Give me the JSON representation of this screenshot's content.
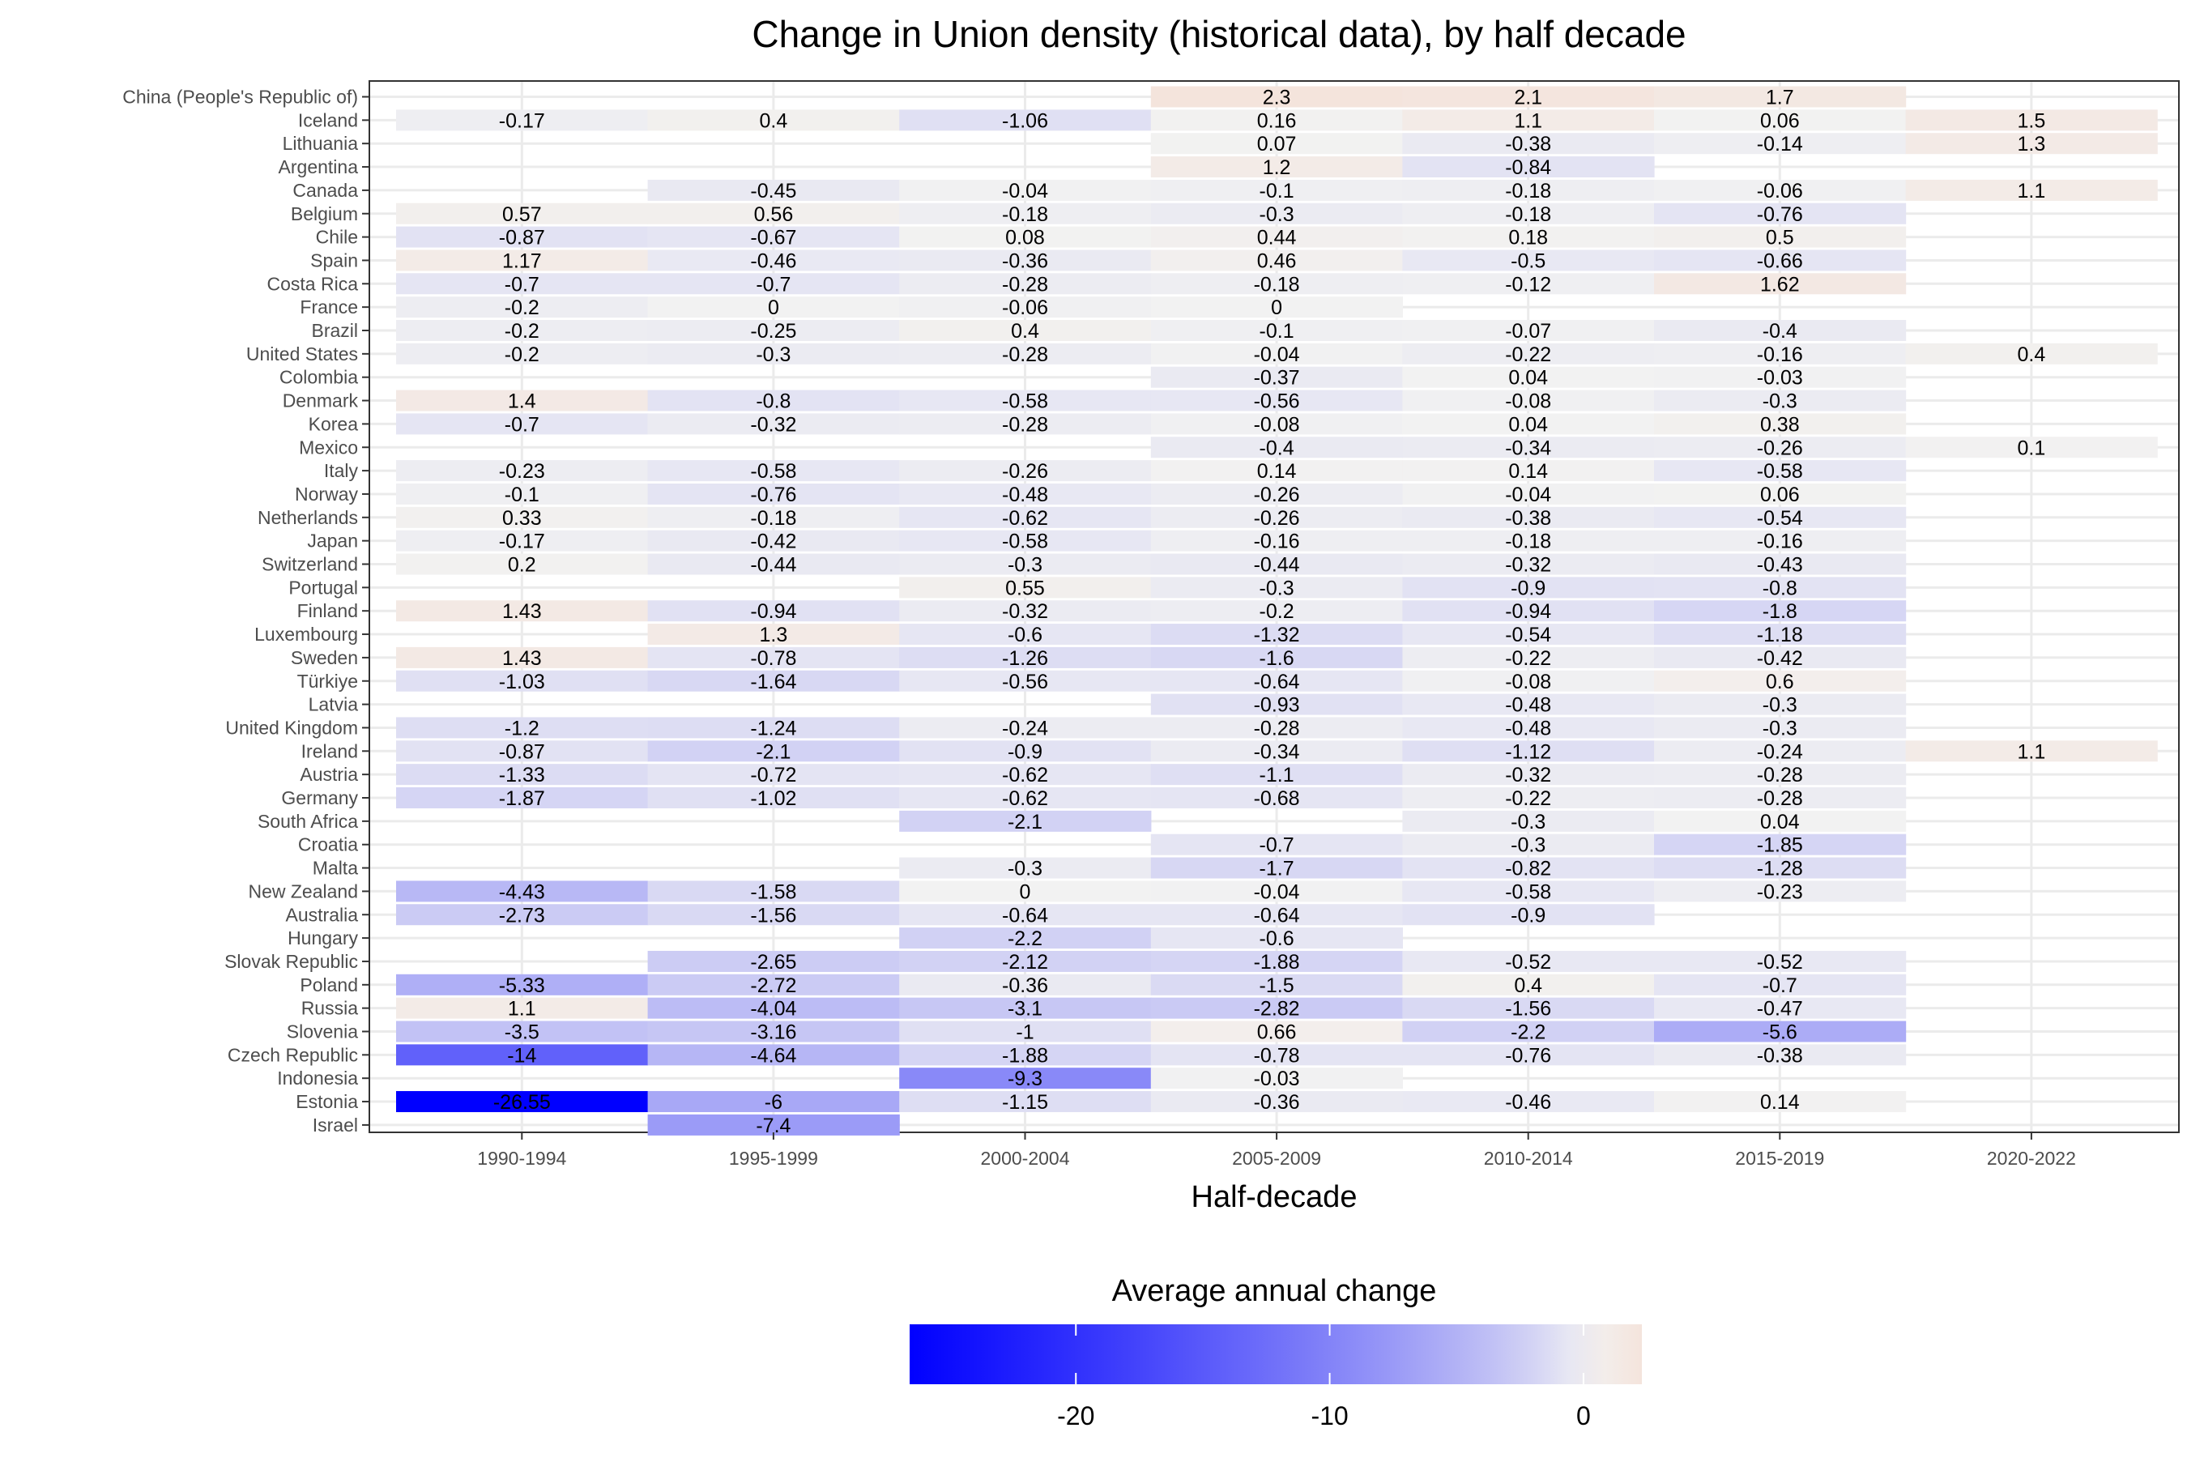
{
  "chart_data": {
    "type": "heatmap",
    "title": "Change in Union density (historical data), by half decade",
    "xlabel": "Half-decade",
    "ylabel": "",
    "legend": {
      "title": "Average annual change",
      "placement": "bottom",
      "ticks": [
        -20,
        -10,
        0
      ],
      "tick_labels": [
        "-20",
        "-10",
        "0"
      ],
      "range": [
        -26.55,
        2.3
      ],
      "low_color": "#0000ff",
      "mid_color": "#f2f2f2",
      "high_color": "#f4e4dc"
    },
    "x_categories": [
      "1990-1994",
      "1995-1999",
      "2000-2004",
      "2005-2009",
      "2010-2014",
      "2015-2019",
      "2020-2022"
    ],
    "y_categories": [
      "China (People's Republic of)",
      "Iceland",
      "Lithuania",
      "Argentina",
      "Canada",
      "Belgium",
      "Chile",
      "Spain",
      "Costa Rica",
      "France",
      "Brazil",
      "United States",
      "Colombia",
      "Denmark",
      "Korea",
      "Mexico",
      "Italy",
      "Norway",
      "Netherlands",
      "Japan",
      "Switzerland",
      "Portugal",
      "Finland",
      "Luxembourg",
      "Sweden",
      "Türkiye",
      "Latvia",
      "United Kingdom",
      "Ireland",
      "Austria",
      "Germany",
      "South Africa",
      "Croatia",
      "Malta",
      "New Zealand",
      "Australia",
      "Hungary",
      "Slovak Republic",
      "Poland",
      "Russia",
      "Slovenia",
      "Czech Republic",
      "Indonesia",
      "Estonia",
      "Israel"
    ],
    "values": [
      [
        null,
        null,
        null,
        2.3,
        2.1,
        1.7,
        null
      ],
      [
        -0.17,
        0.4,
        -1.06,
        0.16,
        1.1,
        0.06,
        1.5
      ],
      [
        null,
        null,
        null,
        0.07,
        -0.38,
        -0.14,
        1.3
      ],
      [
        null,
        null,
        null,
        1.2,
        -0.84,
        null,
        null
      ],
      [
        null,
        -0.45,
        -0.04,
        -0.1,
        -0.18,
        -0.06,
        1.1
      ],
      [
        0.57,
        0.56,
        -0.18,
        -0.3,
        -0.18,
        -0.76,
        null
      ],
      [
        -0.87,
        -0.67,
        0.08,
        0.44,
        0.18,
        0.5,
        null
      ],
      [
        1.17,
        -0.46,
        -0.36,
        0.46,
        -0.5,
        -0.66,
        null
      ],
      [
        -0.7,
        -0.7,
        -0.28,
        -0.18,
        -0.12,
        1.62,
        null
      ],
      [
        -0.2,
        0,
        -0.06,
        0,
        null,
        null,
        null
      ],
      [
        -0.2,
        -0.25,
        0.4,
        -0.1,
        -0.07,
        -0.4,
        null
      ],
      [
        -0.2,
        -0.3,
        -0.28,
        -0.04,
        -0.22,
        -0.16,
        0.4
      ],
      [
        null,
        null,
        null,
        -0.37,
        0.04,
        -0.03,
        null
      ],
      [
        1.4,
        -0.8,
        -0.58,
        -0.56,
        -0.08,
        -0.3,
        null
      ],
      [
        -0.7,
        -0.32,
        -0.28,
        -0.08,
        0.04,
        0.38,
        null
      ],
      [
        null,
        null,
        null,
        -0.4,
        -0.34,
        -0.26,
        0.1
      ],
      [
        -0.23,
        -0.58,
        -0.26,
        0.14,
        0.14,
        -0.58,
        null
      ],
      [
        -0.1,
        -0.76,
        -0.48,
        -0.26,
        -0.04,
        0.06,
        null
      ],
      [
        0.33,
        -0.18,
        -0.62,
        -0.26,
        -0.38,
        -0.54,
        null
      ],
      [
        -0.17,
        -0.42,
        -0.58,
        -0.16,
        -0.18,
        -0.16,
        null
      ],
      [
        0.2,
        -0.44,
        -0.3,
        -0.44,
        -0.32,
        -0.43,
        null
      ],
      [
        null,
        null,
        0.55,
        -0.3,
        -0.9,
        -0.8,
        null
      ],
      [
        1.43,
        -0.94,
        -0.32,
        -0.2,
        -0.94,
        -1.8,
        null
      ],
      [
        null,
        1.3,
        -0.6,
        -1.32,
        -0.54,
        -1.18,
        null
      ],
      [
        1.43,
        -0.78,
        -1.26,
        -1.6,
        -0.22,
        -0.42,
        null
      ],
      [
        -1.03,
        -1.64,
        -0.56,
        -0.64,
        -0.08,
        0.6,
        null
      ],
      [
        null,
        null,
        null,
        -0.93,
        -0.48,
        -0.3,
        null
      ],
      [
        -1.2,
        -1.24,
        -0.24,
        -0.28,
        -0.48,
        -0.3,
        null
      ],
      [
        -0.87,
        -2.1,
        -0.9,
        -0.34,
        -1.12,
        -0.24,
        1.1
      ],
      [
        -1.33,
        -0.72,
        -0.62,
        -1.1,
        -0.32,
        -0.28,
        null
      ],
      [
        -1.87,
        -1.02,
        -0.62,
        -0.68,
        -0.22,
        -0.28,
        null
      ],
      [
        null,
        null,
        -2.1,
        null,
        -0.3,
        0.04,
        null
      ],
      [
        null,
        null,
        null,
        -0.7,
        -0.3,
        -1.85,
        null
      ],
      [
        null,
        null,
        -0.3,
        -1.7,
        -0.82,
        -1.28,
        null
      ],
      [
        -4.43,
        -1.58,
        0,
        -0.04,
        -0.58,
        -0.23,
        null
      ],
      [
        -2.73,
        -1.56,
        -0.64,
        -0.64,
        -0.9,
        null,
        null
      ],
      [
        null,
        null,
        -2.2,
        -0.6,
        null,
        null,
        null
      ],
      [
        null,
        -2.65,
        -2.12,
        -1.88,
        -0.52,
        -0.52,
        null
      ],
      [
        -5.33,
        -2.72,
        -0.36,
        -1.5,
        0.4,
        -0.7,
        null
      ],
      [
        1.1,
        -4.04,
        -3.1,
        -2.82,
        -1.56,
        -0.47,
        null
      ],
      [
        -3.5,
        -3.16,
        -1,
        0.66,
        -2.2,
        -5.6,
        null
      ],
      [
        -14,
        -4.64,
        -1.88,
        -0.78,
        -0.76,
        -0.38,
        null
      ],
      [
        null,
        null,
        -9.3,
        -0.03,
        null,
        null,
        null
      ],
      [
        -26.55,
        -6,
        -1.15,
        -0.36,
        -0.46,
        0.14,
        null
      ],
      [
        null,
        -7.4,
        null,
        null,
        null,
        null,
        null
      ]
    ],
    "grid": true
  }
}
